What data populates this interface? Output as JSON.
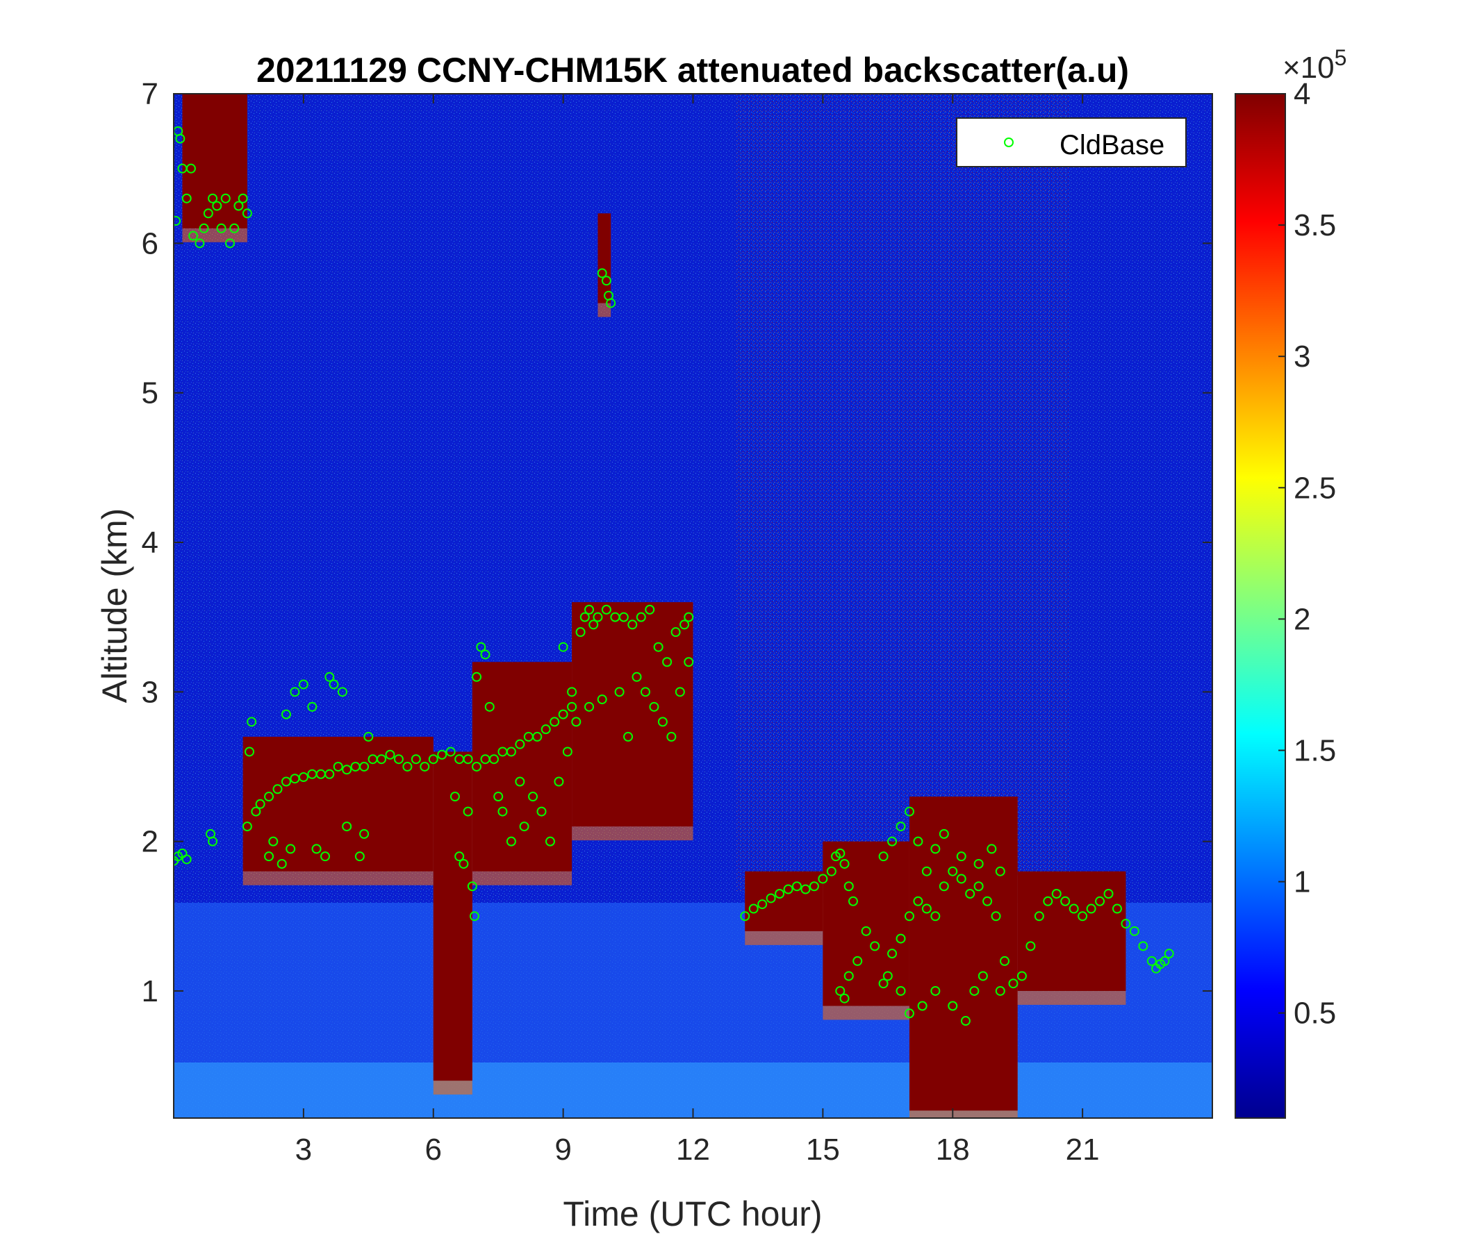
{
  "chart_data": {
    "type": "heatmap",
    "title": "20211129 CCNY-CHM15K attenuated backscatter(a.u)",
    "xlabel": "Time (UTC hour)",
    "ylabel": "Altitude (km)",
    "xlim": [
      0,
      24
    ],
    "ylim": [
      0.15,
      7
    ],
    "xticks": [
      3,
      6,
      9,
      12,
      15,
      18,
      21
    ],
    "yticks": [
      1,
      2,
      3,
      4,
      5,
      6,
      7
    ],
    "colorbar": {
      "colormap": "jet",
      "clim": [
        0.1,
        4
      ],
      "ticks": [
        0.5,
        1,
        1.5,
        2,
        2.5,
        3,
        3.5,
        4
      ],
      "tick_labels": [
        "0.5",
        "1",
        "1.5",
        "2",
        "2.5",
        "3",
        "3.5",
        "4"
      ],
      "multiplier_base": "×10",
      "multiplier_exp": "5"
    },
    "cloud_layers": [
      {
        "x_range": [
          0.2,
          1.7
        ],
        "base_km": 6.1,
        "top_km": 7.0
      },
      {
        "x_range": [
          1.6,
          6.0
        ],
        "base_km": 1.8,
        "top_km": 2.7
      },
      {
        "x_range": [
          6.0,
          6.9
        ],
        "base_km": 0.4,
        "top_km": 2.6
      },
      {
        "x_range": [
          6.9,
          9.2
        ],
        "base_km": 1.8,
        "top_km": 3.2
      },
      {
        "x_range": [
          9.2,
          12.0
        ],
        "base_km": 2.1,
        "top_km": 3.6
      },
      {
        "x_range": [
          9.8,
          10.1
        ],
        "base_km": 5.6,
        "top_km": 6.2
      },
      {
        "x_range": [
          13.2,
          15.0
        ],
        "base_km": 1.4,
        "top_km": 1.8
      },
      {
        "x_range": [
          15.0,
          17.0
        ],
        "base_km": 0.9,
        "top_km": 2.0
      },
      {
        "x_range": [
          17.0,
          19.5
        ],
        "base_km": 0.2,
        "top_km": 2.3
      },
      {
        "x_range": [
          19.5,
          22.0
        ],
        "base_km": 1.0,
        "top_km": 1.8
      }
    ],
    "series": [
      {
        "name": "CldBase",
        "marker": "circle",
        "color": "#00ff00",
        "points": [
          [
            0.05,
            6.15
          ],
          [
            0.1,
            6.75
          ],
          [
            0.15,
            6.7
          ],
          [
            0.2,
            6.5
          ],
          [
            0.3,
            6.3
          ],
          [
            0.4,
            6.5
          ],
          [
            0.45,
            6.05
          ],
          [
            0.6,
            6.0
          ],
          [
            0.7,
            6.1
          ],
          [
            0.8,
            6.2
          ],
          [
            0.9,
            6.3
          ],
          [
            1.0,
            6.25
          ],
          [
            1.1,
            6.1
          ],
          [
            1.2,
            6.3
          ],
          [
            1.3,
            6.0
          ],
          [
            1.4,
            6.1
          ],
          [
            1.5,
            6.25
          ],
          [
            1.6,
            6.3
          ],
          [
            1.7,
            6.2
          ],
          [
            0.0,
            1.87
          ],
          [
            0.1,
            1.9
          ],
          [
            0.2,
            1.92
          ],
          [
            0.3,
            1.88
          ],
          [
            0.85,
            2.05
          ],
          [
            0.9,
            2.0
          ],
          [
            1.7,
            2.1
          ],
          [
            1.75,
            2.6
          ],
          [
            1.8,
            2.8
          ],
          [
            1.9,
            2.2
          ],
          [
            2.0,
            2.25
          ],
          [
            2.2,
            2.3
          ],
          [
            2.4,
            2.35
          ],
          [
            2.6,
            2.4
          ],
          [
            2.8,
            2.42
          ],
          [
            3.0,
            2.43
          ],
          [
            3.2,
            2.45
          ],
          [
            3.4,
            2.45
          ],
          [
            3.6,
            2.45
          ],
          [
            3.8,
            2.5
          ],
          [
            4.0,
            2.48
          ],
          [
            4.2,
            2.5
          ],
          [
            4.4,
            2.5
          ],
          [
            4.6,
            2.55
          ],
          [
            4.8,
            2.55
          ],
          [
            5.0,
            2.58
          ],
          [
            5.2,
            2.55
          ],
          [
            5.4,
            2.5
          ],
          [
            5.6,
            2.55
          ],
          [
            5.8,
            2.5
          ],
          [
            6.0,
            2.55
          ],
          [
            6.2,
            2.58
          ],
          [
            6.4,
            2.6
          ],
          [
            6.6,
            2.55
          ],
          [
            6.8,
            2.55
          ],
          [
            7.0,
            2.5
          ],
          [
            7.2,
            2.55
          ],
          [
            7.4,
            2.55
          ],
          [
            7.6,
            2.6
          ],
          [
            7.8,
            2.6
          ],
          [
            8.0,
            2.65
          ],
          [
            8.2,
            2.7
          ],
          [
            8.4,
            2.7
          ],
          [
            8.6,
            2.75
          ],
          [
            8.8,
            2.8
          ],
          [
            9.0,
            2.85
          ],
          [
            9.2,
            2.9
          ],
          [
            2.2,
            1.9
          ],
          [
            2.3,
            2.0
          ],
          [
            2.5,
            1.85
          ],
          [
            2.7,
            1.95
          ],
          [
            2.6,
            2.85
          ],
          [
            2.8,
            3.0
          ],
          [
            3.0,
            3.05
          ],
          [
            3.2,
            2.9
          ],
          [
            3.3,
            1.95
          ],
          [
            3.5,
            1.9
          ],
          [
            3.6,
            3.1
          ],
          [
            3.7,
            3.05
          ],
          [
            3.9,
            3.0
          ],
          [
            4.0,
            2.1
          ],
          [
            4.3,
            1.9
          ],
          [
            4.4,
            2.05
          ],
          [
            4.5,
            2.7
          ],
          [
            6.5,
            2.3
          ],
          [
            6.6,
            1.9
          ],
          [
            6.7,
            1.85
          ],
          [
            6.8,
            2.2
          ],
          [
            6.9,
            1.7
          ],
          [
            6.95,
            1.5
          ],
          [
            7.0,
            3.1
          ],
          [
            7.1,
            3.3
          ],
          [
            7.2,
            3.25
          ],
          [
            7.3,
            2.9
          ],
          [
            7.5,
            2.3
          ],
          [
            7.6,
            2.2
          ],
          [
            7.8,
            2.0
          ],
          [
            8.0,
            2.4
          ],
          [
            8.1,
            2.1
          ],
          [
            8.3,
            2.3
          ],
          [
            8.5,
            2.2
          ],
          [
            8.7,
            2.0
          ],
          [
            8.9,
            2.4
          ],
          [
            9.1,
            2.6
          ],
          [
            9.0,
            3.3
          ],
          [
            9.2,
            3.0
          ],
          [
            9.4,
            3.4
          ],
          [
            9.5,
            3.5
          ],
          [
            9.6,
            3.55
          ],
          [
            9.7,
            3.45
          ],
          [
            9.8,
            3.5
          ],
          [
            10.0,
            3.55
          ],
          [
            10.2,
            3.5
          ],
          [
            10.4,
            3.5
          ],
          [
            10.6,
            3.45
          ],
          [
            10.8,
            3.5
          ],
          [
            11.0,
            3.55
          ],
          [
            11.2,
            3.3
          ],
          [
            11.4,
            3.2
          ],
          [
            11.6,
            3.4
          ],
          [
            11.8,
            3.45
          ],
          [
            11.9,
            3.5
          ],
          [
            9.3,
            2.8
          ],
          [
            9.6,
            2.9
          ],
          [
            9.9,
            2.95
          ],
          [
            10.3,
            3.0
          ],
          [
            10.5,
            2.7
          ],
          [
            10.7,
            3.1
          ],
          [
            10.9,
            3.0
          ],
          [
            11.1,
            2.9
          ],
          [
            11.3,
            2.8
          ],
          [
            11.5,
            2.7
          ],
          [
            11.7,
            3.0
          ],
          [
            11.9,
            3.2
          ],
          [
            9.9,
            5.8
          ],
          [
            10.0,
            5.75
          ],
          [
            10.05,
            5.65
          ],
          [
            10.1,
            5.6
          ],
          [
            13.2,
            1.5
          ],
          [
            13.4,
            1.55
          ],
          [
            13.6,
            1.58
          ],
          [
            13.8,
            1.62
          ],
          [
            14.0,
            1.65
          ],
          [
            14.2,
            1.68
          ],
          [
            14.4,
            1.7
          ],
          [
            14.6,
            1.68
          ],
          [
            14.8,
            1.7
          ],
          [
            15.0,
            1.75
          ],
          [
            15.2,
            1.8
          ],
          [
            15.3,
            1.9
          ],
          [
            15.4,
            1.92
          ],
          [
            15.5,
            1.85
          ],
          [
            15.6,
            1.7
          ],
          [
            15.7,
            1.6
          ],
          [
            15.4,
            1.0
          ],
          [
            15.5,
            0.95
          ],
          [
            15.6,
            1.1
          ],
          [
            15.8,
            1.2
          ],
          [
            16.0,
            1.4
          ],
          [
            16.2,
            1.3
          ],
          [
            16.4,
            1.05
          ],
          [
            16.5,
            1.1
          ],
          [
            16.6,
            1.25
          ],
          [
            16.8,
            1.35
          ],
          [
            17.0,
            1.5
          ],
          [
            17.2,
            1.6
          ],
          [
            17.4,
            1.55
          ],
          [
            17.6,
            1.5
          ],
          [
            17.8,
            1.7
          ],
          [
            18.0,
            1.8
          ],
          [
            18.2,
            1.75
          ],
          [
            18.4,
            1.65
          ],
          [
            18.6,
            1.7
          ],
          [
            18.8,
            1.6
          ],
          [
            19.0,
            1.5
          ],
          [
            19.2,
            1.2
          ],
          [
            19.4,
            1.05
          ],
          [
            19.6,
            1.1
          ],
          [
            19.8,
            1.3
          ],
          [
            20.0,
            1.5
          ],
          [
            20.2,
            1.6
          ],
          [
            20.4,
            1.65
          ],
          [
            20.6,
            1.6
          ],
          [
            20.8,
            1.55
          ],
          [
            21.0,
            1.5
          ],
          [
            21.2,
            1.55
          ],
          [
            21.4,
            1.6
          ],
          [
            21.6,
            1.65
          ],
          [
            21.8,
            1.55
          ],
          [
            22.0,
            1.45
          ],
          [
            22.2,
            1.4
          ],
          [
            22.4,
            1.3
          ],
          [
            16.4,
            1.9
          ],
          [
            16.6,
            2.0
          ],
          [
            16.8,
            2.1
          ],
          [
            17.0,
            2.2
          ],
          [
            17.2,
            2.0
          ],
          [
            17.4,
            1.8
          ],
          [
            17.6,
            1.95
          ],
          [
            17.8,
            2.05
          ],
          [
            18.2,
            1.9
          ],
          [
            18.6,
            1.85
          ],
          [
            18.9,
            1.95
          ],
          [
            19.1,
            1.8
          ],
          [
            16.8,
            1.0
          ],
          [
            17.0,
            0.85
          ],
          [
            17.3,
            0.9
          ],
          [
            17.6,
            1.0
          ],
          [
            18.0,
            0.9
          ],
          [
            18.3,
            0.8
          ],
          [
            18.5,
            1.0
          ],
          [
            18.7,
            1.1
          ],
          [
            19.1,
            1.0
          ],
          [
            22.6,
            1.2
          ],
          [
            22.7,
            1.15
          ],
          [
            22.8,
            1.18
          ],
          [
            22.9,
            1.2
          ],
          [
            23.0,
            1.25
          ]
        ]
      }
    ],
    "legend": {
      "entries": [
        "CldBase"
      ],
      "position": "top-right"
    }
  }
}
